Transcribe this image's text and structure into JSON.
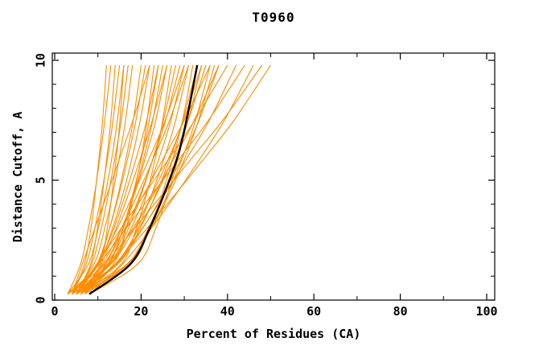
{
  "figure": {
    "background": "#FFFFFF",
    "frame_color": "#000000",
    "text_color": "#000000"
  },
  "chart_data": {
    "type": "line",
    "title": "T0960",
    "xlabel": "Percent of Residues (CA)",
    "ylabel": "Distance Cutoff, A",
    "xlim": [
      0,
      102
    ],
    "ylim": [
      0,
      10.3
    ],
    "x_ticks_major": [
      0,
      20,
      40,
      60,
      80,
      100
    ],
    "x_ticks_minor": [
      10,
      30,
      50,
      70,
      90
    ],
    "y_ticks_major": [
      0,
      5,
      10
    ],
    "y_ticks_minor": [
      1,
      2,
      3,
      4,
      6,
      7,
      8,
      9
    ],
    "grid": false,
    "legend": false,
    "series_color": "#FF8C00",
    "highlight_color": "#000000",
    "cutoff_grid": [
      0.25,
      1.5,
      3,
      4.5,
      6,
      7.5,
      9.8
    ],
    "model_curves_percent": [
      [
        4,
        6.9,
        8.4,
        9.4,
        10.3,
        11.1,
        12
      ],
      [
        3,
        6,
        7.8,
        9.3,
        10.5,
        11.6,
        13
      ],
      [
        5,
        8.3,
        9.9,
        11.1,
        12.1,
        13,
        14
      ],
      [
        4,
        7.3,
        9.3,
        10.9,
        12.3,
        13.5,
        15
      ],
      [
        3,
        7.8,
        10.1,
        11.8,
        13.3,
        14.5,
        16
      ],
      [
        5,
        8.6,
        10.8,
        12.5,
        14,
        15.4,
        17
      ],
      [
        4,
        9.1,
        11.6,
        13.5,
        15,
        16.4,
        18
      ],
      [
        6,
        10.5,
        12.2,
        13.3,
        14.3,
        15.1,
        16
      ],
      [
        4,
        9.9,
        12.7,
        14.8,
        16.6,
        18.2,
        20
      ],
      [
        5,
        9.8,
        12.7,
        15,
        17,
        18.8,
        21
      ],
      [
        3,
        10,
        13.4,
        15.9,
        18,
        19.8,
        22
      ],
      [
        6,
        13.6,
        16.5,
        18.4,
        20.1,
        21.4,
        23
      ],
      [
        4,
        10,
        13.7,
        16.5,
        19,
        21.3,
        24
      ],
      [
        5,
        12.3,
        15.9,
        18.5,
        20.7,
        22.7,
        25
      ],
      [
        3,
        11.4,
        15.5,
        18.6,
        21.1,
        23.4,
        26
      ],
      [
        6,
        15.4,
        18.9,
        21.4,
        23.4,
        25,
        27
      ],
      [
        4,
        12.8,
        17.1,
        20.2,
        22.9,
        25.2,
        28
      ],
      [
        5,
        12.2,
        16.6,
        20,
        23,
        25.7,
        29
      ],
      [
        3,
        12.9,
        17.7,
        21.3,
        24.3,
        26.9,
        30
      ],
      [
        7,
        10.8,
        14.2,
        17.2,
        20,
        22.6,
        26
      ],
      [
        5,
        10.1,
        14.5,
        18.4,
        22.1,
        25.6,
        30
      ],
      [
        4,
        6.4,
        9.3,
        12.3,
        15.2,
        18.1,
        22
      ],
      [
        6,
        12.6,
        15.8,
        18.2,
        20.2,
        21.9,
        24
      ],
      [
        5,
        14.5,
        19.2,
        22.6,
        25.5,
        28,
        31
      ],
      [
        6,
        17.7,
        22,
        25,
        27.5,
        29.6,
        32
      ],
      [
        4,
        14.6,
        19.8,
        23.6,
        26.9,
        29.7,
        33
      ],
      [
        7,
        16.9,
        21.7,
        25.3,
        28.3,
        30.9,
        34
      ],
      [
        5,
        14,
        19.5,
        23.8,
        27.6,
        30.9,
        35
      ],
      [
        6,
        17,
        22.3,
        26.3,
        29.7,
        32.6,
        36
      ],
      [
        4,
        13,
        18.5,
        22.8,
        26.6,
        29.9,
        34
      ],
      [
        8,
        19.2,
        23.4,
        26.3,
        28.7,
        30.7,
        33
      ],
      [
        5,
        16.7,
        22.4,
        26.7,
        30.3,
        33.3,
        37
      ],
      [
        6,
        11.1,
        15.5,
        19.4,
        23.1,
        26.6,
        31
      ],
      [
        6,
        12.5,
        18.1,
        23.2,
        27.9,
        32.3,
        38
      ],
      [
        5,
        9.7,
        15.4,
        21.1,
        26.8,
        32.4,
        40
      ],
      [
        7,
        14.1,
        20.3,
        25.8,
        30.9,
        35.8,
        42
      ],
      [
        5,
        10.3,
        16.6,
        22.9,
        29.3,
        35.6,
        44
      ],
      [
        8,
        15.7,
        22.4,
        28.4,
        34,
        39.3,
        46
      ],
      [
        6,
        11.7,
        18.5,
        25.3,
        32.1,
        38.9,
        48
      ],
      [
        7,
        14.1,
        21.4,
        28.3,
        35,
        41.5,
        50
      ],
      [
        4,
        14.2,
        20.4,
        25.3,
        29.6,
        33.4,
        38
      ],
      [
        8,
        11.8,
        16.3,
        20.9,
        25.4,
        30,
        36
      ]
    ],
    "highlight_curve_percent": [
      8,
      17.5,
      22,
      25.5,
      28.5,
      30.5,
      33
    ]
  }
}
